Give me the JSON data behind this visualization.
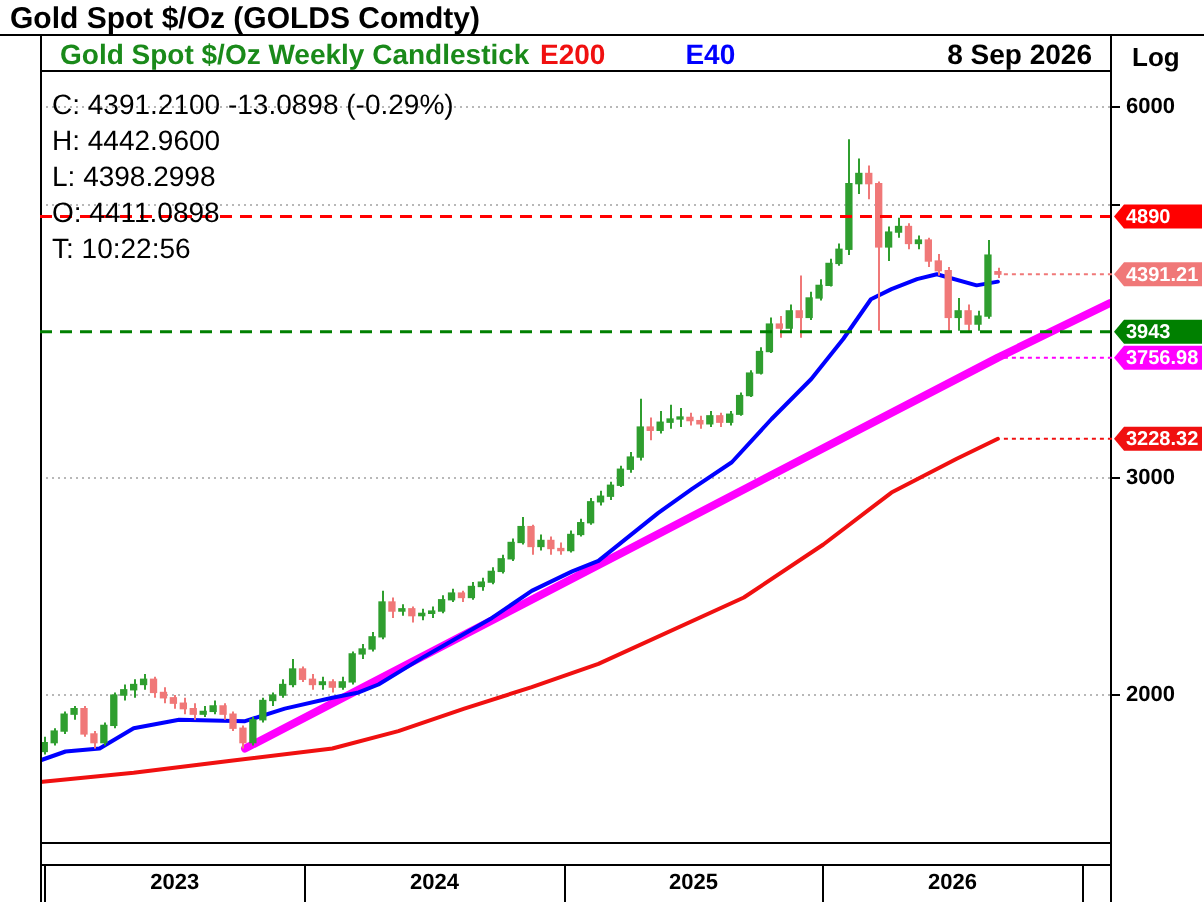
{
  "chart_data": {
    "type": "candlestick",
    "title": "Gold Spot   $/Oz (GOLDS Comdty)",
    "subtitle": "Gold Spot   $/Oz Weekly Candlestick",
    "annotations": [
      "8 Sep 2026",
      "Log",
      "C: 4391.2100   -13.0898 (-0.29%)",
      "H: 4442.9600",
      "L: 4398.2998",
      "O: 4411.0898",
      "T: 10:22:56",
      {
        "text": "4391.21",
        "x": "2026-09-04",
        "y": 4391.21
      },
      {
        "text": "3756.98",
        "x": "2026-09-04",
        "y": 3756.98
      },
      {
        "text": "3228.32",
        "x": "2026-09-04",
        "y": 3228.32
      }
    ],
    "x": [
      "2022-12-30",
      "2023-01-13",
      "2023-01-27",
      "2023-02-10",
      "2023-02-24",
      "2023-03-10",
      "2023-03-24",
      "2023-04-07",
      "2023-04-21",
      "2023-05-05",
      "2023-05-19",
      "2023-06-02",
      "2023-06-16",
      "2023-06-30",
      "2023-07-14",
      "2023-07-28",
      "2023-08-11",
      "2023-08-25",
      "2023-09-08",
      "2023-09-22",
      "2023-10-06",
      "2023-10-20",
      "2023-11-03",
      "2023-11-17",
      "2023-12-01",
      "2023-12-15",
      "2023-12-29",
      "2024-01-12",
      "2024-01-26",
      "2024-02-09",
      "2024-02-23",
      "2024-03-08",
      "2024-03-22",
      "2024-04-05",
      "2024-04-19",
      "2024-05-03",
      "2024-05-17",
      "2024-05-31",
      "2024-06-14",
      "2024-06-28",
      "2024-07-12",
      "2024-07-26",
      "2024-08-09",
      "2024-08-23",
      "2024-09-06",
      "2024-09-20",
      "2024-10-04",
      "2024-10-18",
      "2024-11-01",
      "2024-11-15",
      "2024-11-29",
      "2024-12-13",
      "2024-12-27",
      "2025-01-10",
      "2025-01-24",
      "2025-02-07",
      "2025-02-21",
      "2025-03-07",
      "2025-03-21",
      "2025-04-04",
      "2025-04-18",
      "2025-05-02",
      "2025-05-16",
      "2025-05-30",
      "2025-06-13",
      "2025-06-27",
      "2025-07-11",
      "2025-07-25",
      "2025-08-08",
      "2025-08-22",
      "2025-09-05",
      "2025-09-19",
      "2025-10-03",
      "2025-10-17",
      "2025-10-31",
      "2025-11-14",
      "2025-11-28",
      "2025-12-12",
      "2025-12-26",
      "2026-01-09",
      "2026-01-23",
      "2026-02-06",
      "2026-02-20",
      "2026-03-06",
      "2026-03-20",
      "2026-04-03",
      "2026-04-17",
      "2026-05-01",
      "2026-05-15",
      "2026-05-29",
      "2026-06-12",
      "2026-06-26",
      "2026-07-10",
      "2026-07-24",
      "2026-08-07",
      "2026-08-21",
      "2026-09-04"
    ],
    "ohlc": [
      [
        1800,
        1850,
        1790,
        1830
      ],
      [
        1830,
        1880,
        1820,
        1870
      ],
      [
        1870,
        1940,
        1860,
        1930
      ],
      [
        1930,
        1960,
        1910,
        1950
      ],
      [
        1950,
        1960,
        1850,
        1860
      ],
      [
        1860,
        1870,
        1810,
        1830
      ],
      [
        1830,
        1900,
        1820,
        1890
      ],
      [
        1890,
        2010,
        1880,
        2000
      ],
      [
        2000,
        2040,
        1980,
        2020
      ],
      [
        2020,
        2060,
        1990,
        2040
      ],
      [
        2040,
        2080,
        2020,
        2060
      ],
      [
        2060,
        2070,
        1990,
        2010
      ],
      [
        2010,
        2030,
        1970,
        1990
      ],
      [
        1990,
        2000,
        1950,
        1970
      ],
      [
        1970,
        1990,
        1930,
        1950
      ],
      [
        1950,
        1970,
        1910,
        1930
      ],
      [
        1930,
        1960,
        1920,
        1940
      ],
      [
        1940,
        1980,
        1930,
        1960
      ],
      [
        1960,
        1970,
        1910,
        1930
      ],
      [
        1930,
        1940,
        1870,
        1880
      ],
      [
        1880,
        1890,
        1810,
        1830
      ],
      [
        1830,
        1920,
        1820,
        1910
      ],
      [
        1910,
        1990,
        1900,
        1980
      ],
      [
        1980,
        2010,
        1960,
        2000
      ],
      [
        2000,
        2060,
        1990,
        2040
      ],
      [
        2040,
        2140,
        2030,
        2100
      ],
      [
        2100,
        2110,
        2050,
        2060
      ],
      [
        2060,
        2080,
        2020,
        2040
      ],
      [
        2040,
        2070,
        2020,
        2050
      ],
      [
        2050,
        2060,
        2010,
        2030
      ],
      [
        2030,
        2070,
        2020,
        2050
      ],
      [
        2050,
        2170,
        2040,
        2160
      ],
      [
        2160,
        2200,
        2140,
        2180
      ],
      [
        2180,
        2250,
        2170,
        2230
      ],
      [
        2230,
        2430,
        2220,
        2380
      ],
      [
        2380,
        2400,
        2310,
        2340
      ],
      [
        2340,
        2370,
        2320,
        2350
      ],
      [
        2350,
        2360,
        2290,
        2320
      ],
      [
        2320,
        2350,
        2300,
        2330
      ],
      [
        2330,
        2360,
        2310,
        2340
      ],
      [
        2340,
        2410,
        2330,
        2390
      ],
      [
        2390,
        2440,
        2380,
        2420
      ],
      [
        2420,
        2430,
        2380,
        2400
      ],
      [
        2400,
        2470,
        2390,
        2450
      ],
      [
        2450,
        2490,
        2430,
        2470
      ],
      [
        2470,
        2540,
        2460,
        2520
      ],
      [
        2520,
        2600,
        2510,
        2580
      ],
      [
        2580,
        2680,
        2570,
        2660
      ],
      [
        2660,
        2790,
        2650,
        2740
      ],
      [
        2740,
        2750,
        2600,
        2640
      ],
      [
        2640,
        2700,
        2620,
        2670
      ],
      [
        2670,
        2690,
        2600,
        2630
      ],
      [
        2630,
        2660,
        2600,
        2620
      ],
      [
        2620,
        2720,
        2610,
        2700
      ],
      [
        2700,
        2780,
        2690,
        2760
      ],
      [
        2760,
        2890,
        2750,
        2870
      ],
      [
        2870,
        2930,
        2850,
        2900
      ],
      [
        2900,
        2980,
        2880,
        2960
      ],
      [
        2960,
        3070,
        2950,
        3050
      ],
      [
        3050,
        3150,
        3030,
        3120
      ],
      [
        3120,
        3480,
        3100,
        3300
      ],
      [
        3300,
        3360,
        3220,
        3280
      ],
      [
        3280,
        3400,
        3260,
        3330
      ],
      [
        3330,
        3440,
        3290,
        3350
      ],
      [
        3350,
        3420,
        3300,
        3360
      ],
      [
        3360,
        3390,
        3310,
        3340
      ],
      [
        3340,
        3370,
        3290,
        3320
      ],
      [
        3320,
        3400,
        3300,
        3370
      ],
      [
        3370,
        3390,
        3300,
        3330
      ],
      [
        3330,
        3400,
        3310,
        3380
      ],
      [
        3380,
        3520,
        3370,
        3500
      ],
      [
        3500,
        3670,
        3490,
        3650
      ],
      [
        3650,
        3830,
        3640,
        3800
      ],
      [
        3800,
        4050,
        3790,
        4000
      ],
      [
        4000,
        4060,
        3900,
        3970
      ],
      [
        3970,
        4150,
        3950,
        4100
      ],
      [
        4100,
        4380,
        3900,
        4050
      ],
      [
        4050,
        4250,
        4030,
        4200
      ],
      [
        4200,
        4350,
        4180,
        4300
      ],
      [
        4300,
        4520,
        4290,
        4480
      ],
      [
        4480,
        4650,
        4460,
        4600
      ],
      [
        4600,
        5650,
        4550,
        5200
      ],
      [
        5200,
        5450,
        5100,
        5300
      ],
      [
        5300,
        5380,
        5050,
        5200
      ],
      [
        5200,
        5220,
        3950,
        4620
      ],
      [
        4620,
        4800,
        4500,
        4750
      ],
      [
        4750,
        4880,
        4700,
        4800
      ],
      [
        4800,
        4830,
        4600,
        4650
      ],
      [
        4650,
        4720,
        4600,
        4680
      ],
      [
        4680,
        4700,
        4450,
        4500
      ],
      [
        4500,
        4560,
        4380,
        4420
      ],
      [
        4420,
        4450,
        3950,
        4050
      ],
      [
        4050,
        4200,
        3950,
        4100
      ],
      [
        4100,
        4150,
        3943,
        4000
      ],
      [
        4000,
        4100,
        3950,
        4060
      ],
      [
        4060,
        4680,
        4040,
        4550
      ],
      [
        4411.09,
        4442.96,
        4360,
        4391.21
      ]
    ],
    "colors": [
      "#2f9e2f",
      "#2f9e2f",
      "#2f9e2f",
      "#2f9e2f",
      "#f07878",
      "#f07878",
      "#2f9e2f",
      "#2f9e2f",
      "#2f9e2f",
      "#2f9e2f",
      "#2f9e2f",
      "#f07878",
      "#f07878",
      "#f07878",
      "#f07878",
      "#f07878",
      "#2f9e2f",
      "#2f9e2f",
      "#f07878",
      "#f07878",
      "#f07878",
      "#2f9e2f",
      "#2f9e2f",
      "#2f9e2f",
      "#2f9e2f",
      "#2f9e2f",
      "#f07878",
      "#f07878",
      "#2f9e2f",
      "#f07878",
      "#2f9e2f",
      "#2f9e2f",
      "#2f9e2f",
      "#2f9e2f",
      "#2f9e2f",
      "#f07878",
      "#2f9e2f",
      "#f07878",
      "#2f9e2f",
      "#2f9e2f",
      "#2f9e2f",
      "#2f9e2f",
      "#f07878",
      "#2f9e2f",
      "#2f9e2f",
      "#2f9e2f",
      "#2f9e2f",
      "#2f9e2f",
      "#2f9e2f",
      "#f07878",
      "#2f9e2f",
      "#f07878",
      "#f07878",
      "#2f9e2f",
      "#2f9e2f",
      "#2f9e2f",
      "#2f9e2f",
      "#2f9e2f",
      "#2f9e2f",
      "#2f9e2f",
      "#2f9e2f",
      "#f07878",
      "#2f9e2f",
      "#2f9e2f",
      "#2f9e2f",
      "#f07878",
      "#f07878",
      "#2f9e2f",
      "#f07878",
      "#2f9e2f",
      "#2f9e2f",
      "#2f9e2f",
      "#2f9e2f",
      "#2f9e2f",
      "#f07878",
      "#2f9e2f",
      "#f07878",
      "#2f9e2f",
      "#2f9e2f",
      "#2f9e2f",
      "#2f9e2f",
      "#2f9e2f",
      "#2f9e2f",
      "#f07878",
      "#f07878",
      "#2f9e2f",
      "#2f9e2f",
      "#f07878",
      "#2f9e2f",
      "#f07878",
      "#f07878",
      "#f07878",
      "#2f9e2f",
      "#f07878",
      "#2f9e2f",
      "#2f9e2f",
      "#f07878"
    ],
    "series": [
      {
        "name": "E200",
        "type": "line",
        "color": "#f01010",
        "x": [
          "2022-12-24",
          "2023-05-05",
          "2023-09-22",
          "2024-02-09",
          "2024-05-12",
          "2024-08-13",
          "2024-11-16",
          "2025-02-18",
          "2025-09-11",
          "2026-01-01",
          "2026-04-07",
          "2026-07-08",
          "2026-09-04"
        ],
        "values": [
          1700,
          1730,
          1770,
          1810,
          1870,
          1950,
          2030,
          2120,
          2400,
          2650,
          2920,
          3110,
          3228.32
        ]
      },
      {
        "name": "E40",
        "type": "line",
        "color": "#0000ff",
        "x": [
          "2022-12-24",
          "2023-01-29",
          "2023-03-18",
          "2023-05-05",
          "2023-07-08",
          "2023-10-09",
          "2023-12-04",
          "2024-02-09",
          "2024-03-17",
          "2024-04-14",
          "2024-06-18",
          "2024-09-21",
          "2024-11-16",
          "2025-01-12",
          "2025-02-18",
          "2025-05-13",
          "2025-06-30",
          "2025-08-25",
          "2025-10-20",
          "2025-12-15",
          "2026-01-29",
          "2026-03-09",
          "2026-04-07",
          "2026-05-13",
          "2026-06-10",
          "2026-08-05",
          "2026-09-04"
        ],
        "values": [
          1770,
          1800,
          1810,
          1880,
          1910,
          1905,
          1950,
          1990,
          2010,
          2040,
          2150,
          2310,
          2430,
          2520,
          2570,
          2810,
          2940,
          3090,
          3350,
          3610,
          3890,
          4190,
          4270,
          4350,
          4390,
          4300,
          4330
        ]
      },
      {
        "type": "line",
        "color": "#ff00ff",
        "x": [
          "2023-10-09",
          "2026-09-04",
          "2027-02-09"
        ],
        "values": [
          1810,
          3756.98,
          4160
        ]
      }
    ],
    "ref_lines": [
      {
        "axis": "y",
        "value": 4890,
        "label": "4890",
        "color": "#ff0000",
        "line_style": "dashed"
      },
      {
        "axis": "y",
        "value": 3943,
        "label": "3943",
        "color": "#008000",
        "line_style": "dashed"
      }
    ],
    "xlim": [
      "2022-12-24",
      "2027-02-09"
    ],
    "xticks": [
      {
        "value": "2023-07-02",
        "label": "2023"
      },
      {
        "value": "2024-07-02",
        "label": "2024"
      },
      {
        "value": "2025-07-02",
        "label": "2025"
      },
      {
        "value": "2026-07-02",
        "label": "2026"
      }
    ],
    "ylim": [
      1520,
      6430
    ],
    "yticks": [
      2000,
      3000,
      {
        "value": 5000,
        "label": null
      },
      6000
    ],
    "log": true,
    "grid": "y",
    "legend": "top",
    "marker": "none"
  }
}
